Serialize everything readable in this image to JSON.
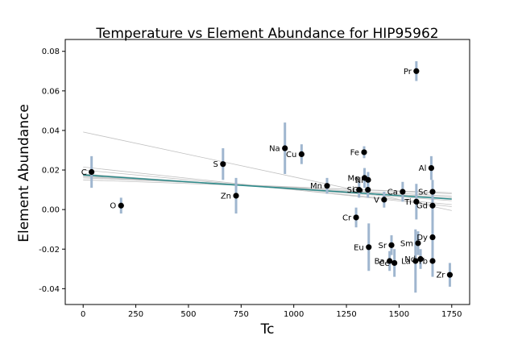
{
  "chart_data": {
    "type": "scatter",
    "title": "Temperature vs Element Abundance for HIP95962",
    "xlabel": "Tc",
    "ylabel": "Element Abundance",
    "xlim": [
      -85,
      1835
    ],
    "ylim": [
      -0.048,
      0.086
    ],
    "xticks": [
      0,
      250,
      500,
      750,
      1000,
      1250,
      1500,
      1750
    ],
    "yticks": [
      -0.04,
      -0.02,
      0.0,
      0.02,
      0.04,
      0.06,
      0.08
    ],
    "grid": false,
    "colors": {
      "point": "#000000",
      "errorbar": "#9fb6cf",
      "fit_line": "#2e8b8b",
      "sample_lines": "#c0c0c0"
    },
    "points": [
      {
        "label": "C",
        "x": 40,
        "y": 0.019,
        "err": 0.008
      },
      {
        "label": "O",
        "x": 180,
        "y": 0.002,
        "err": 0.004
      },
      {
        "label": "S",
        "x": 664,
        "y": 0.023,
        "err": 0.008
      },
      {
        "label": "Zn",
        "x": 726,
        "y": 0.007,
        "err": 0.009
      },
      {
        "label": "Na",
        "x": 958,
        "y": 0.031,
        "err": 0.013
      },
      {
        "label": "Cu",
        "x": 1037,
        "y": 0.028,
        "err": 0.005
      },
      {
        "label": "Mn",
        "x": 1158,
        "y": 0.012,
        "err": 0.004
      },
      {
        "label": "Cr",
        "x": 1296,
        "y": -0.004,
        "err": 0.005
      },
      {
        "label": "Si",
        "x": 1310,
        "y": 0.01,
        "err": 0.004
      },
      {
        "label": "Fe",
        "x": 1334,
        "y": 0.029,
        "err": 0.003
      },
      {
        "label": "Mg",
        "x": 1336,
        "y": 0.016,
        "err": 0.005
      },
      {
        "label": "Co",
        "x": 1352,
        "y": 0.01,
        "err": 0.004
      },
      {
        "label": "Ni",
        "x": 1353,
        "y": 0.015,
        "err": 0.004
      },
      {
        "label": "Eu",
        "x": 1356,
        "y": -0.019,
        "err": 0.012
      },
      {
        "label": "V",
        "x": 1429,
        "y": 0.005,
        "err": 0.004
      },
      {
        "label": "Ba",
        "x": 1455,
        "y": -0.026,
        "err": 0.005
      },
      {
        "label": "Sr",
        "x": 1464,
        "y": -0.018,
        "err": 0.005
      },
      {
        "label": "Ce",
        "x": 1478,
        "y": -0.027,
        "err": 0.007
      },
      {
        "label": "Ca",
        "x": 1517,
        "y": 0.009,
        "err": 0.005
      },
      {
        "label": "Ti",
        "x": 1582,
        "y": 0.004,
        "err": 0.009
      },
      {
        "label": "Pr",
        "x": 1582,
        "y": 0.07,
        "err": 0.005
      },
      {
        "label": "La",
        "x": 1578,
        "y": -0.026,
        "err": 0.016
      },
      {
        "label": "Sm",
        "x": 1590,
        "y": -0.017,
        "err": 0.006
      },
      {
        "label": "Nd",
        "x": 1602,
        "y": -0.025,
        "err": 0.005
      },
      {
        "label": "Al",
        "x": 1653,
        "y": 0.021,
        "err": 0.006
      },
      {
        "label": "Sc",
        "x": 1659,
        "y": 0.009,
        "err": 0.006
      },
      {
        "label": "Gd",
        "x": 1659,
        "y": 0.002,
        "err": 0.008
      },
      {
        "label": "Dy",
        "x": 1659,
        "y": -0.014,
        "err": 0.013
      },
      {
        "label": "Tb",
        "x": 1659,
        "y": -0.026,
        "err": 0.008
      },
      {
        "label": "Zr",
        "x": 1741,
        "y": -0.033,
        "err": 0.006
      }
    ],
    "fit_line": {
      "x": [
        0,
        1750
      ],
      "y": [
        0.0175,
        0.0053
      ]
    },
    "sample_lines": [
      {
        "x": [
          0,
          1750
        ],
        "y": [
          0.0392,
          -0.0005
        ]
      },
      {
        "x": [
          0,
          1750
        ],
        "y": [
          0.0215,
          0.0015
        ]
      },
      {
        "x": [
          0,
          1750
        ],
        "y": [
          0.02,
          0.0025
        ]
      },
      {
        "x": [
          0,
          1750
        ],
        "y": [
          0.016,
          0.008
        ]
      },
      {
        "x": [
          0,
          1750
        ],
        "y": [
          0.015,
          0.0085
        ]
      },
      {
        "x": [
          0,
          1750
        ],
        "y": [
          0.017,
          0.006
        ]
      },
      {
        "x": [
          0,
          1750
        ],
        "y": [
          0.018,
          0.0045
        ]
      },
      {
        "x": [
          0,
          1750
        ],
        "y": [
          0.0165,
          0.0068
        ]
      }
    ]
  }
}
